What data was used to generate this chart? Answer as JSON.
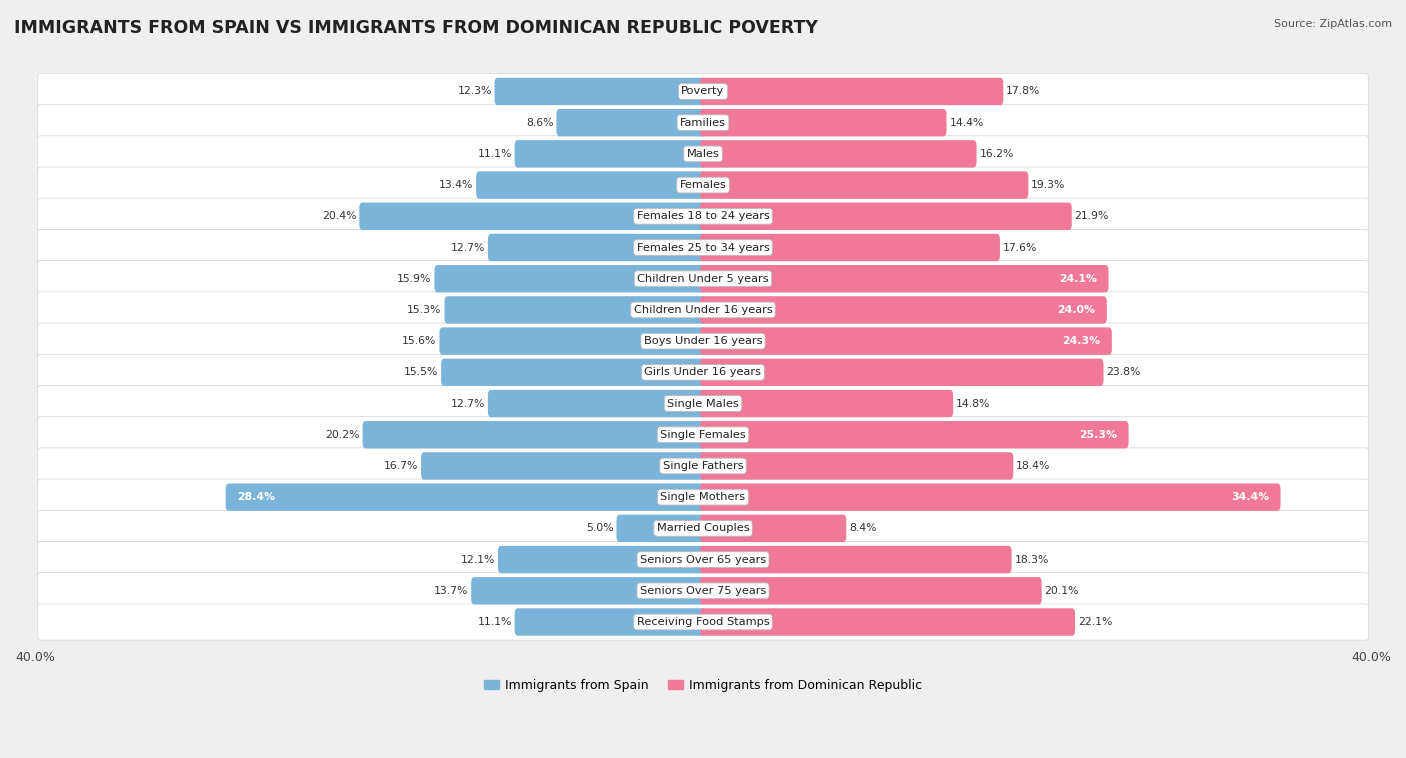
{
  "title": "IMMIGRANTS FROM SPAIN VS IMMIGRANTS FROM DOMINICAN REPUBLIC POVERTY",
  "source": "Source: ZipAtlas.com",
  "categories": [
    "Poverty",
    "Families",
    "Males",
    "Females",
    "Females 18 to 24 years",
    "Females 25 to 34 years",
    "Children Under 5 years",
    "Children Under 16 years",
    "Boys Under 16 years",
    "Girls Under 16 years",
    "Single Males",
    "Single Females",
    "Single Fathers",
    "Single Mothers",
    "Married Couples",
    "Seniors Over 65 years",
    "Seniors Over 75 years",
    "Receiving Food Stamps"
  ],
  "spain_values": [
    12.3,
    8.6,
    11.1,
    13.4,
    20.4,
    12.7,
    15.9,
    15.3,
    15.6,
    15.5,
    12.7,
    20.2,
    16.7,
    28.4,
    5.0,
    12.1,
    13.7,
    11.1
  ],
  "dr_values": [
    17.8,
    14.4,
    16.2,
    19.3,
    21.9,
    17.6,
    24.1,
    24.0,
    24.3,
    23.8,
    14.8,
    25.3,
    18.4,
    34.4,
    8.4,
    18.3,
    20.1,
    22.1
  ],
  "spain_color": "#7ab4d8",
  "dr_color": "#f07898",
  "spain_label": "Immigrants from Spain",
  "dr_label": "Immigrants from Dominican Republic",
  "xlim": 40.0,
  "background_color": "#efefef",
  "row_bg_color": "#ffffff",
  "title_fontsize": 12.5,
  "label_fontsize": 8.2,
  "value_fontsize": 7.8,
  "legend_fontsize": 9.0,
  "source_fontsize": 8.0
}
